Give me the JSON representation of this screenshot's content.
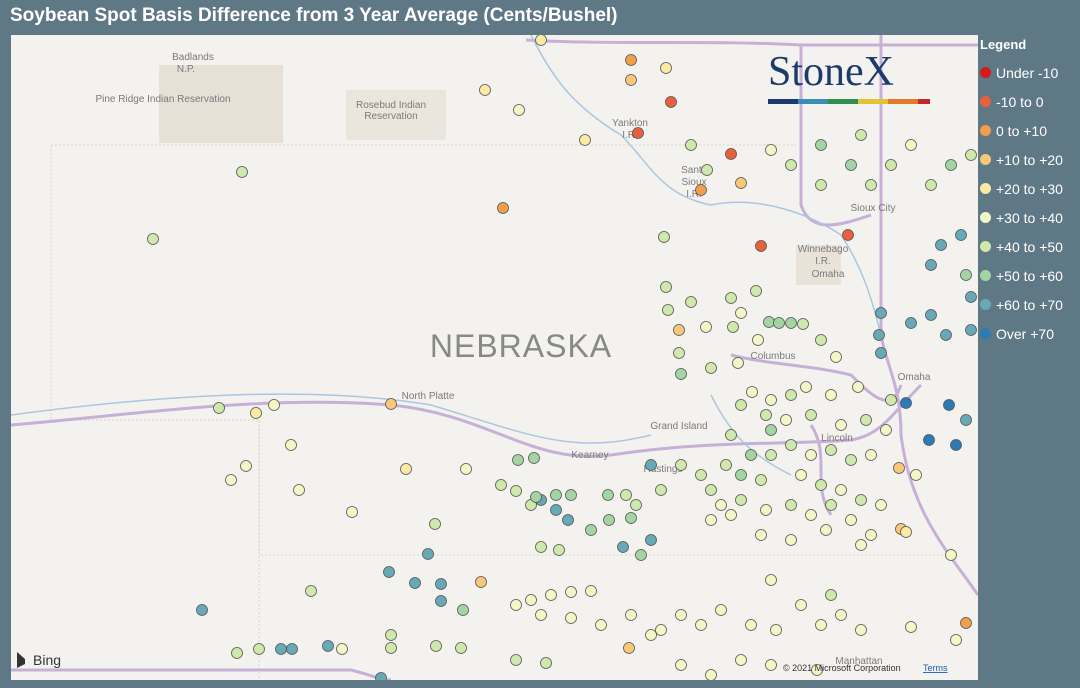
{
  "header": {
    "title": "Soybean Spot Basis Difference from 3 Year Average (Cents/Bushel)"
  },
  "legend": {
    "title": "Legend",
    "items": [
      {
        "label": "Under -10",
        "color": "#d7191c"
      },
      {
        "label": "-10 to 0",
        "color": "#e8613c"
      },
      {
        "label": "0 to +10",
        "color": "#f29e4c"
      },
      {
        "label": "+10 to +20",
        "color": "#f8c77a"
      },
      {
        "label": "+20 to +30",
        "color": "#fbe9a4"
      },
      {
        "label": "+30 to +40",
        "color": "#f3f7c6"
      },
      {
        "label": "+40 to +50",
        "color": "#cfe8ab"
      },
      {
        "label": "+50 to +60",
        "color": "#a3d5a4"
      },
      {
        "label": "+60 to +70",
        "color": "#67a9b6"
      },
      {
        "label": "Over +70",
        "color": "#2c7bb6"
      }
    ]
  },
  "map": {
    "labels": [
      "Badlands",
      "N.P.",
      "Pine Ridge Indian Reservation",
      "Rosebud Indian",
      "Reservation",
      "Yankton",
      "I.R.",
      "Santee",
      "Sioux",
      "I.R.",
      "Sioux City",
      "Winnebago",
      "I.R.",
      "Omaha",
      "NEBRASKA",
      "North Platte",
      "Columbus",
      "Grand Island",
      "Kearney",
      "Hastings",
      "Lincoln",
      "Omaha",
      "Manhattan"
    ],
    "logo": "StoneX",
    "attribution": "Bing",
    "copyright": "© 2021 Microsoft Corporation",
    "terms": "Terms"
  }
}
